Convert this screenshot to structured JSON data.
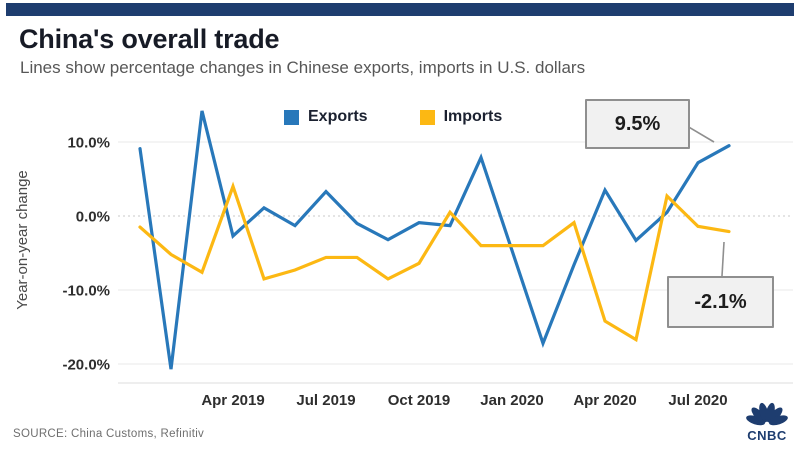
{
  "header": {
    "title": "China's overall trade",
    "subtitle": "Lines show percentage changes in Chinese exports, imports in U.S. dollars"
  },
  "chart_data": {
    "type": "line",
    "title": "China's overall trade",
    "xlabel": "",
    "ylabel": "Year-on-year change",
    "grid": true,
    "legend_position": "top-center",
    "ylim": [
      -22.5,
      15
    ],
    "y_ticks": [
      10.0,
      0.0,
      -10.0,
      -20.0
    ],
    "y_tick_labels": [
      "10.0%",
      "0.0%",
      "-10.0%",
      "-20.0%"
    ],
    "x_tick_labels": [
      "Apr 2019",
      "Jul 2019",
      "Oct 2019",
      "Jan 2020",
      "Apr 2020",
      "Jul 2020"
    ],
    "x_tick_slots": [
      3,
      6,
      9,
      12,
      15,
      18
    ],
    "categories": [
      "Jan 2019",
      "Feb 2019",
      "Mar 2019",
      "Apr 2019",
      "May 2019",
      "Jun 2019",
      "Jul 2019",
      "Aug 2019",
      "Sep 2019",
      "Oct 2019",
      "Nov 2019",
      "Dec 2019",
      "Jan-Feb 2020",
      "Mar 2020",
      "Apr 2020",
      "May 2020",
      "Jun 2020",
      "Jul 2020",
      "Aug 2020"
    ],
    "slots": [
      0,
      1,
      2,
      3,
      4,
      5,
      6,
      7,
      8,
      9,
      10,
      11,
      13,
      14,
      15,
      16,
      17,
      18,
      19
    ],
    "series": [
      {
        "name": "Exports",
        "color": "#2878ba",
        "values": [
          9.1,
          -20.7,
          14.2,
          -2.7,
          1.1,
          -1.3,
          3.3,
          -1.0,
          -3.2,
          -0.9,
          -1.3,
          7.9,
          -17.2,
          -6.6,
          3.5,
          -3.3,
          0.5,
          7.2,
          9.5
        ]
      },
      {
        "name": "Imports",
        "color": "#fcb813",
        "values": [
          -1.5,
          -5.2,
          -7.6,
          4.0,
          -8.5,
          -7.3,
          -5.6,
          -5.6,
          -8.5,
          -6.4,
          0.5,
          -4.0,
          -4.0,
          -0.9,
          -14.2,
          -16.7,
          2.7,
          -1.4,
          -2.1
        ]
      }
    ],
    "annotations": [
      {
        "text": "9.5%",
        "series": "Exports",
        "point": "Aug 2020"
      },
      {
        "text": "-2.1%",
        "series": "Imports",
        "point": "Aug 2020"
      }
    ]
  },
  "footer": {
    "source": "SOURCE: China Customs, Refinitiv",
    "logo_text": "CNBC"
  },
  "colors": {
    "accent_bar": "#1e3d6f",
    "exports": "#2878ba",
    "imports": "#fcb813",
    "annotation_bg": "#f1f1f1",
    "annotation_border": "#8f8f8f"
  }
}
